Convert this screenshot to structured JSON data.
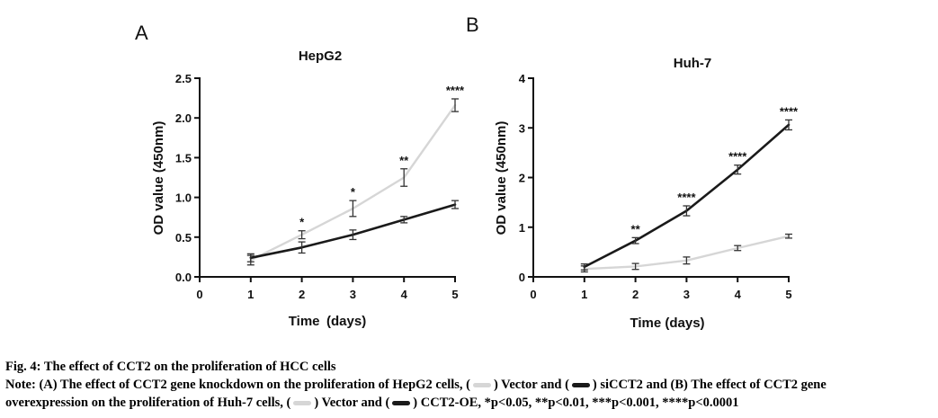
{
  "panels": [
    {
      "letter": "A",
      "title": "HepG2",
      "xlabel": "Time (days)",
      "ylabel": "OD value (450nm)",
      "xticks": [
        "0",
        "1",
        "2",
        "3",
        "4",
        "5"
      ],
      "yticks": [
        "0.0",
        "0.5",
        "1.0",
        "1.5",
        "2.0",
        "2.5"
      ]
    },
    {
      "letter": "B",
      "title": "Huh-7",
      "xlabel": "Time (days)",
      "ylabel": "OD value (450nm)",
      "xticks": [
        "0",
        "1",
        "2",
        "3",
        "4",
        "5"
      ],
      "yticks": [
        "0",
        "1",
        "2",
        "3",
        "4"
      ]
    }
  ],
  "chart_data": [
    {
      "type": "line",
      "title": "HepG2",
      "xlabel": "Time (days)",
      "ylabel": "OD value (450nm)",
      "xlim": [
        0,
        5
      ],
      "ylim": [
        0,
        2.5
      ],
      "x": [
        1,
        2,
        3,
        4,
        5
      ],
      "series": [
        {
          "values": [
            0.21,
            0.53,
            0.86,
            1.25,
            2.16
          ],
          "errors": [
            0.06,
            0.05,
            0.1,
            0.11,
            0.08
          ],
          "color": "#d6d6d6"
        },
        {
          "values": [
            0.24,
            0.37,
            0.53,
            0.72,
            0.91
          ],
          "errors": [
            0.05,
            0.07,
            0.06,
            0.04,
            0.05
          ],
          "color": "#1a1a1a"
        }
      ],
      "annotations": [
        {
          "x": 2,
          "text": "*"
        },
        {
          "x": 3,
          "text": "*"
        },
        {
          "x": 4,
          "text": "**"
        },
        {
          "x": 5,
          "text": "****"
        }
      ]
    },
    {
      "type": "line",
      "title": "Huh-7",
      "xlabel": "Time (days)",
      "ylabel": "OD value (450nm)",
      "xlim": [
        0,
        5
      ],
      "ylim": [
        0,
        4
      ],
      "x": [
        1,
        2,
        3,
        4,
        5
      ],
      "series": [
        {
          "values": [
            0.16,
            0.21,
            0.33,
            0.58,
            0.82
          ],
          "errors": [
            0.06,
            0.06,
            0.07,
            0.05,
            0.04
          ],
          "color": "#d6d6d6"
        },
        {
          "values": [
            0.2,
            0.73,
            1.33,
            2.16,
            3.06
          ],
          "errors": [
            0.06,
            0.06,
            0.1,
            0.09,
            0.1
          ],
          "color": "#1a1a1a"
        }
      ],
      "annotations": [
        {
          "x": 2,
          "text": "**"
        },
        {
          "x": 3,
          "text": "****"
        },
        {
          "x": 4,
          "text": "****"
        },
        {
          "x": 5,
          "text": "****"
        }
      ]
    }
  ],
  "caption": {
    "title": "Fig. 4: The effect of CCT2 on the proliferation of HCC cells",
    "note_a": "Note: (A) The effect of CCT2 gene knockdown on the proliferation of HepG2 cells, (",
    "note_b": ") Vector and (",
    "note_c": ") siCCT2 and (B) The effect of CCT2 gene",
    "note_d": "overexpression on the proliferation of Huh-7 cells, (",
    "note_e": ") Vector and (",
    "note_f": ") CCT2-OE, *p<0.05, **p<0.01, ***p<0.001, ****p<0.0001"
  }
}
